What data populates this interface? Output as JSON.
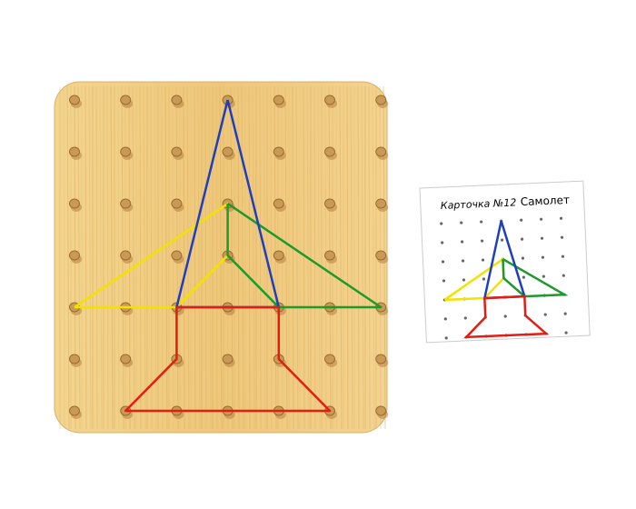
{
  "card": {
    "title": "Карточка №12",
    "name": "Самолет"
  },
  "colors": {
    "wood": "#f1cf85",
    "peg": "#c99a55",
    "blue": "#1d3fbf",
    "yellow": "#f2e200",
    "green": "#1c9a2a",
    "red": "#e41d12"
  },
  "figure": {
    "blue": [
      [
        3,
        0
      ],
      [
        2,
        4
      ],
      [
        4,
        4
      ],
      [
        3,
        0
      ]
    ],
    "yellow": [
      [
        0,
        4
      ],
      [
        3,
        2
      ],
      [
        3,
        3
      ],
      [
        2,
        4
      ],
      [
        0,
        4
      ]
    ],
    "green": [
      [
        3,
        2
      ],
      [
        6,
        4
      ],
      [
        4,
        4
      ],
      [
        3,
        3
      ],
      [
        3,
        2
      ]
    ],
    "red": [
      [
        2,
        4
      ],
      [
        4,
        4
      ],
      [
        4,
        5
      ],
      [
        5,
        6
      ],
      [
        1,
        6
      ],
      [
        2,
        5
      ],
      [
        2,
        4
      ]
    ]
  }
}
